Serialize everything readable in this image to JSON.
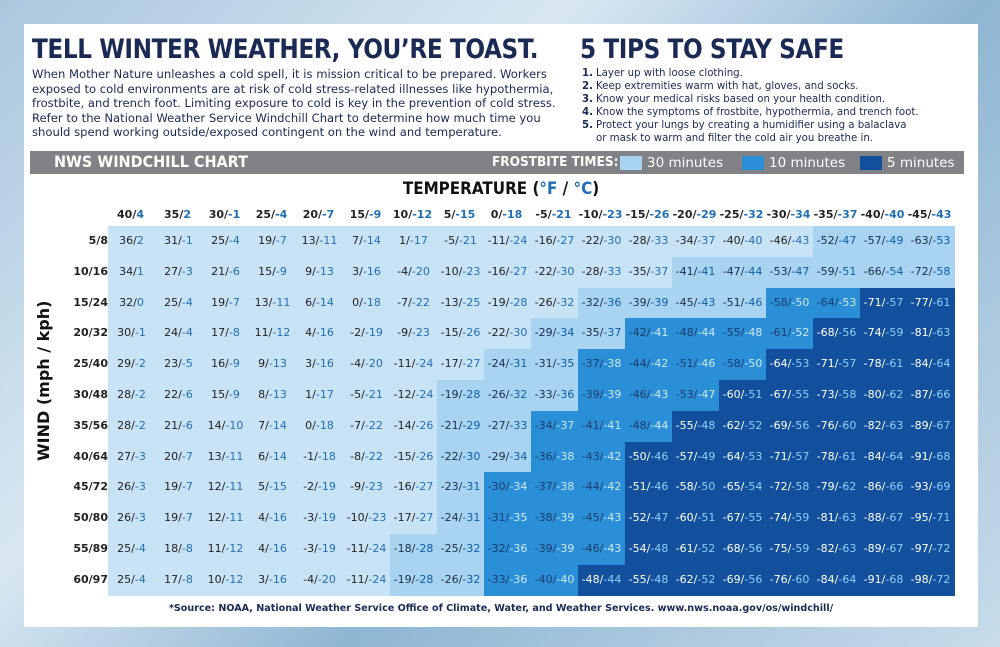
{
  "header": {
    "title": "TELL WINTER WEATHER, YOU’RE TOAST.",
    "intro": "When Mother Nature unleashes a cold spell, it is mission critical to be prepared. Workers exposed to cold environments are at risk of cold stress-related illnesses like hypothermia, frostbite, and trench foot. Limiting exposure to cold is key in the prevention of cold stress. Refer to the National Weather Service Windchill Chart to determine how much time you should spend working outside/exposed contingent on the wind and temperature."
  },
  "tips": {
    "title": "5 TIPS TO STAY SAFE",
    "items": [
      {
        "num": "1.",
        "text": "Layer up with loose clothing."
      },
      {
        "num": "2.",
        "text": "Keep extremities warm with hat, gloves, and socks."
      },
      {
        "num": "3.",
        "text": "Know your medical risks based on your health condition."
      },
      {
        "num": "4.",
        "text": "Know the symptoms of frostbite, hypothermia, and trench foot."
      },
      {
        "num": "5.",
        "text": "Protect your lungs by creating a humidifier using a balaclava",
        "cont": "or mask to warm and filter the cold air you breathe in."
      }
    ]
  },
  "chart_bar": {
    "title": "NWS WINDCHILL CHART",
    "frostbite_label": "FROSTBITE TIMES:",
    "legend": [
      {
        "label": "30 minutes",
        "color": "#a8d4f2"
      },
      {
        "label": "10 minutes",
        "color": "#2a8fd6"
      },
      {
        "label": "5 minutes",
        "color": "#124f9c"
      }
    ]
  },
  "axis": {
    "temp_title_prefix": "TEMPERATURE (",
    "temp_f": "°F",
    "temp_sep": " / ",
    "temp_c": "°C",
    "temp_title_suffix": ")",
    "wind_label": "WIND (mph / kph)"
  },
  "colors": {
    "none": "#c9e3f6",
    "t30": "#a8d4f2",
    "t10": "#2a8fd6",
    "t5": "#124f9c"
  },
  "chart_data": {
    "type": "table",
    "temperatures": [
      [
        "40",
        "4"
      ],
      [
        "35",
        "2"
      ],
      [
        "30",
        "-1"
      ],
      [
        "25",
        "-4"
      ],
      [
        "20",
        "-7"
      ],
      [
        "15",
        "-9"
      ],
      [
        "10",
        "-12"
      ],
      [
        "5",
        "-15"
      ],
      [
        "0",
        "-18"
      ],
      [
        "-5",
        "-21"
      ],
      [
        "-10",
        "-23"
      ],
      [
        "-15",
        "-26"
      ],
      [
        "-20",
        "-29"
      ],
      [
        "-25",
        "-32"
      ],
      [
        "-30",
        "-34"
      ],
      [
        "-35",
        "-37"
      ],
      [
        "-40",
        "-40"
      ],
      [
        "-45",
        "-43"
      ]
    ],
    "winds": [
      "5/8",
      "10/16",
      "15/24",
      "20/32",
      "25/40",
      "30/48",
      "35/56",
      "40/64",
      "45/72",
      "50/80",
      "55/89",
      "60/97"
    ],
    "rows": [
      [
        [
          "36",
          "2"
        ],
        [
          "31",
          "-1"
        ],
        [
          "25",
          "-4"
        ],
        [
          "19",
          "-7"
        ],
        [
          "13",
          "-11"
        ],
        [
          "7",
          "-14"
        ],
        [
          "1",
          "-17"
        ],
        [
          "-5",
          "-21"
        ],
        [
          "-11",
          "-24"
        ],
        [
          "-16",
          "-27"
        ],
        [
          "-22",
          "-30"
        ],
        [
          "-28",
          "-33"
        ],
        [
          "-34",
          "-37"
        ],
        [
          "-40",
          "-40"
        ],
        [
          "-46",
          "-43"
        ],
        [
          "-52",
          "-47"
        ],
        [
          "-57",
          "-49"
        ],
        [
          "-63",
          "-53"
        ]
      ],
      [
        [
          "34",
          "1"
        ],
        [
          "27",
          "-3"
        ],
        [
          "21",
          "-6"
        ],
        [
          "15",
          "-9"
        ],
        [
          "9",
          "-13"
        ],
        [
          "3",
          "-16"
        ],
        [
          "-4",
          "-20"
        ],
        [
          "-10",
          "-23"
        ],
        [
          "-16",
          "-27"
        ],
        [
          "-22",
          "-30"
        ],
        [
          "-28",
          "-33"
        ],
        [
          "-35",
          "-37"
        ],
        [
          "-41",
          "-41"
        ],
        [
          "-47",
          "-44"
        ],
        [
          "-53",
          "-47"
        ],
        [
          "-59",
          "-51"
        ],
        [
          "-66",
          "-54"
        ],
        [
          "-72",
          "-58"
        ]
      ],
      [
        [
          "32",
          "0"
        ],
        [
          "25",
          "-4"
        ],
        [
          "19",
          "-7"
        ],
        [
          "13",
          "-11"
        ],
        [
          "6",
          "-14"
        ],
        [
          "0",
          "-18"
        ],
        [
          "-7",
          "-22"
        ],
        [
          "-13",
          "-25"
        ],
        [
          "-19",
          "-28"
        ],
        [
          "-26",
          "-32"
        ],
        [
          "-32",
          "-36"
        ],
        [
          "-39",
          "-39"
        ],
        [
          "-45",
          "-43"
        ],
        [
          "-51",
          "-46"
        ],
        [
          "-58",
          "-50"
        ],
        [
          "-64",
          "-53"
        ],
        [
          "-71",
          "-57"
        ],
        [
          "-77",
          "-61"
        ]
      ],
      [
        [
          "30",
          "-1"
        ],
        [
          "24",
          "-4"
        ],
        [
          "17",
          "-8"
        ],
        [
          "11",
          "-12"
        ],
        [
          "4",
          "-16"
        ],
        [
          "-2",
          "-19"
        ],
        [
          "-9",
          "-23"
        ],
        [
          "-15",
          "-26"
        ],
        [
          "-22",
          "-30"
        ],
        [
          "-29",
          "-34"
        ],
        [
          "-35",
          "-37"
        ],
        [
          "-42",
          "-41"
        ],
        [
          "-48",
          "-44"
        ],
        [
          "-55",
          "-48"
        ],
        [
          "-61",
          "-52"
        ],
        [
          "-68",
          "-56"
        ],
        [
          "-74",
          "-59"
        ],
        [
          "-81",
          "-63"
        ]
      ],
      [
        [
          "29",
          "-2"
        ],
        [
          "23",
          "-5"
        ],
        [
          "16",
          "-9"
        ],
        [
          "9",
          "-13"
        ],
        [
          "3",
          "-16"
        ],
        [
          "-4",
          "-20"
        ],
        [
          "-11",
          "-24"
        ],
        [
          "-17",
          "-27"
        ],
        [
          "-24",
          "-31"
        ],
        [
          "-31",
          "-35"
        ],
        [
          "-37",
          "-38"
        ],
        [
          "-44",
          "-42"
        ],
        [
          "-51",
          "-46"
        ],
        [
          "-58",
          "-50"
        ],
        [
          "-64",
          "-53"
        ],
        [
          "-71",
          "-57"
        ],
        [
          "-78",
          "-61"
        ],
        [
          "-84",
          "-64"
        ]
      ],
      [
        [
          "28",
          "-2"
        ],
        [
          "22",
          "-6"
        ],
        [
          "15",
          "-9"
        ],
        [
          "8",
          "-13"
        ],
        [
          "1",
          "-17"
        ],
        [
          "-5",
          "-21"
        ],
        [
          "-12",
          "-24"
        ],
        [
          "-19",
          "-28"
        ],
        [
          "-26",
          "-32"
        ],
        [
          "-33",
          "-36"
        ],
        [
          "-39",
          "-39"
        ],
        [
          "-46",
          "-43"
        ],
        [
          "-53",
          "-47"
        ],
        [
          "-60",
          "-51"
        ],
        [
          "-67",
          "-55"
        ],
        [
          "-73",
          "-58"
        ],
        [
          "-80",
          "-62"
        ],
        [
          "-87",
          "-66"
        ]
      ],
      [
        [
          "28",
          "-2"
        ],
        [
          "21",
          "-6"
        ],
        [
          "14",
          "-10"
        ],
        [
          "7",
          "-14"
        ],
        [
          "0",
          "-18"
        ],
        [
          "-7",
          "-22"
        ],
        [
          "-14",
          "-26"
        ],
        [
          "-21",
          "-29"
        ],
        [
          "-27",
          "-33"
        ],
        [
          "-34",
          "-37"
        ],
        [
          "-41",
          "-41"
        ],
        [
          "-48",
          "-44"
        ],
        [
          "-55",
          "-48"
        ],
        [
          "-62",
          "-52"
        ],
        [
          "-69",
          "-56"
        ],
        [
          "-76",
          "-60"
        ],
        [
          "-82",
          "-63"
        ],
        [
          "-89",
          "-67"
        ]
      ],
      [
        [
          "27",
          "-3"
        ],
        [
          "20",
          "-7"
        ],
        [
          "13",
          "-11"
        ],
        [
          "6",
          "-14"
        ],
        [
          "-1",
          "-18"
        ],
        [
          "-8",
          "-22"
        ],
        [
          "-15",
          "-26"
        ],
        [
          "-22",
          "-30"
        ],
        [
          "-29",
          "-34"
        ],
        [
          "-36",
          "-38"
        ],
        [
          "-43",
          "-42"
        ],
        [
          "-50",
          "-46"
        ],
        [
          "-57",
          "-49"
        ],
        [
          "-64",
          "-53"
        ],
        [
          "-71",
          "-57"
        ],
        [
          "-78",
          "-61"
        ],
        [
          "-84",
          "-64"
        ],
        [
          "-91",
          "-68"
        ]
      ],
      [
        [
          "26",
          "-3"
        ],
        [
          "19",
          "-7"
        ],
        [
          "12",
          "-11"
        ],
        [
          "5",
          "-15"
        ],
        [
          "-2",
          "-19"
        ],
        [
          "-9",
          "-23"
        ],
        [
          "-16",
          "-27"
        ],
        [
          "-23",
          "-31"
        ],
        [
          "-30",
          "-34"
        ],
        [
          "-37",
          "-38"
        ],
        [
          "-44",
          "-42"
        ],
        [
          "-51",
          "-46"
        ],
        [
          "-58",
          "-50"
        ],
        [
          "-65",
          "-54"
        ],
        [
          "-72",
          "-58"
        ],
        [
          "-79",
          "-62"
        ],
        [
          "-86",
          "-66"
        ],
        [
          "-93",
          "-69"
        ]
      ],
      [
        [
          "26",
          "-3"
        ],
        [
          "19",
          "-7"
        ],
        [
          "12",
          "-11"
        ],
        [
          "4",
          "-16"
        ],
        [
          "-3",
          "-19"
        ],
        [
          "-10",
          "-23"
        ],
        [
          "-17",
          "-27"
        ],
        [
          "-24",
          "-31"
        ],
        [
          "-31",
          "-35"
        ],
        [
          "-38",
          "-39"
        ],
        [
          "-45",
          "-43"
        ],
        [
          "-52",
          "-47"
        ],
        [
          "-60",
          "-51"
        ],
        [
          "-67",
          "-55"
        ],
        [
          "-74",
          "-59"
        ],
        [
          "-81",
          "-63"
        ],
        [
          "-88",
          "-67"
        ],
        [
          "-95",
          "-71"
        ]
      ],
      [
        [
          "25",
          "-4"
        ],
        [
          "18",
          "-8"
        ],
        [
          "11",
          "-12"
        ],
        [
          "4",
          "-16"
        ],
        [
          "-3",
          "-19"
        ],
        [
          "-11",
          "-24"
        ],
        [
          "-18",
          "-28"
        ],
        [
          "-25",
          "-32"
        ],
        [
          "-32",
          "-36"
        ],
        [
          "-39",
          "-39"
        ],
        [
          "-46",
          "-43"
        ],
        [
          "-54",
          "-48"
        ],
        [
          "-61",
          "-52"
        ],
        [
          "-68",
          "-56"
        ],
        [
          "-75",
          "-59"
        ],
        [
          "-82",
          "-63"
        ],
        [
          "-89",
          "-67"
        ],
        [
          "-97",
          "-72"
        ]
      ],
      [
        [
          "25",
          "-4"
        ],
        [
          "17",
          "-8"
        ],
        [
          "10",
          "-12"
        ],
        [
          "3",
          "-16"
        ],
        [
          "-4",
          "-20"
        ],
        [
          "-11",
          "-24"
        ],
        [
          "-19",
          "-28"
        ],
        [
          "-26",
          "-32"
        ],
        [
          "-33",
          "-36"
        ],
        [
          "-40",
          "-40"
        ],
        [
          "-48",
          "-44"
        ],
        [
          "-55",
          "-48"
        ],
        [
          "-62",
          "-52"
        ],
        [
          "-69",
          "-56"
        ],
        [
          "-76",
          "-60"
        ],
        [
          "-84",
          "-64"
        ],
        [
          "-91",
          "-68"
        ],
        [
          "-98",
          "-72"
        ]
      ]
    ],
    "frostbite_start_col": {
      "t30": [
        15,
        12,
        10,
        9,
        8,
        7,
        7,
        7,
        7,
        7,
        6,
        6
      ],
      "t10": [
        99,
        99,
        14,
        11,
        10,
        10,
        9,
        9,
        8,
        8,
        8,
        8
      ],
      "t5": [
        99,
        99,
        16,
        15,
        14,
        13,
        12,
        11,
        11,
        11,
        11,
        10
      ]
    }
  },
  "source": "*Source: NOAA, National Weather Service Office of Climate, Water, and Weather Services. www.nws.noaa.gov/os/windchill/"
}
